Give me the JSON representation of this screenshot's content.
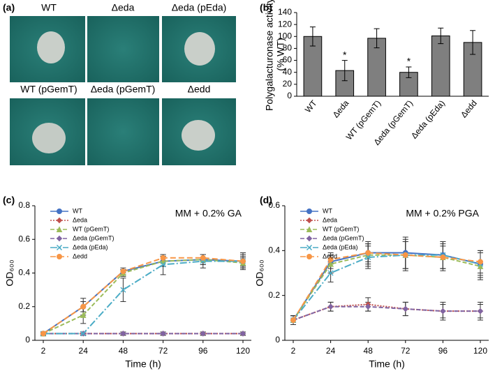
{
  "panels": {
    "a": {
      "label": "(a)",
      "plates": [
        "WT",
        "Δeda",
        "Δeda (pEda)",
        "WT (pGemT)",
        "Δeda (pGemT)",
        "Δedd"
      ]
    }
  },
  "chart_data": [
    {
      "type": "bar",
      "panel_label": "(b)",
      "ylabel": [
        "Polygalacturonase activity",
        "(% WT)"
      ],
      "categories": [
        "WT",
        "Δeda",
        "WT (pGemT)",
        "Δeda (pGemT)",
        "Δeda (pEda)",
        "Δedd"
      ],
      "values": [
        100,
        43,
        97,
        40,
        101,
        90
      ],
      "errors": [
        16,
        17,
        16,
        9,
        13,
        20
      ],
      "markers": [
        null,
        "*",
        null,
        "*",
        null,
        null
      ],
      "color": "#7f7f7f",
      "ylim": [
        0,
        140
      ],
      "yticks": [
        0,
        20,
        40,
        60,
        80,
        100,
        120,
        140
      ]
    },
    {
      "type": "line",
      "panel_label": "(c)",
      "annotation": "MM + 0.2% GA",
      "xlabel": "Time (h)",
      "ylabel": "OD₆₀₀",
      "categories": [
        "2",
        "24",
        "48",
        "72",
        "96",
        "120"
      ],
      "ylim": [
        0,
        0.8
      ],
      "yticks": [
        0,
        0.2,
        0.4,
        0.6,
        0.8
      ],
      "series": [
        {
          "name": "WT",
          "color": "#4472c4",
          "marker": "circle",
          "dash": "none",
          "values": [
            0.04,
            0.2,
            0.41,
            0.47,
            0.48,
            0.47
          ],
          "errors": [
            0.01,
            0.05,
            0.01,
            0.03,
            0.03,
            0.05
          ]
        },
        {
          "name": "Δeda",
          "color": "#c0504d",
          "marker": "diamond",
          "dash": "2,2",
          "values": [
            0.04,
            0.04,
            0.04,
            0.04,
            0.04,
            0.04
          ],
          "errors": [
            0.01,
            0.01,
            0.01,
            0.01,
            0.01,
            0.01
          ]
        },
        {
          "name": "WT (pGemT)",
          "color": "#9bbb59",
          "marker": "triangle",
          "dash": "6,3",
          "values": [
            0.04,
            0.15,
            0.4,
            0.47,
            0.48,
            0.46
          ],
          "errors": [
            0.01,
            0.05,
            0.02,
            0.03,
            0.03,
            0.03
          ]
        },
        {
          "name": "Δeda (pGemT)",
          "color": "#8064a2",
          "marker": "diamond",
          "dash": "6,3",
          "values": [
            0.04,
            0.04,
            0.04,
            0.04,
            0.04,
            0.04
          ],
          "errors": [
            0.01,
            0.01,
            0.01,
            0.01,
            0.01,
            0.01
          ]
        },
        {
          "name": "Δeda (pEda)",
          "color": "#4bacc6",
          "marker": "x",
          "dash": "10,3,2,3",
          "values": [
            0.04,
            0.04,
            0.3,
            0.45,
            0.47,
            0.47
          ],
          "errors": [
            0.01,
            0.01,
            0.07,
            0.06,
            0.04,
            0.04
          ]
        },
        {
          "name": "Δedd",
          "color": "#f79646",
          "marker": "circle",
          "dash": "8,4",
          "values": [
            0.04,
            0.2,
            0.41,
            0.49,
            0.49,
            0.47
          ],
          "errors": [
            0.01,
            0.03,
            0.02,
            0.02,
            0.02,
            0.03
          ]
        }
      ]
    },
    {
      "type": "line",
      "panel_label": "(d)",
      "annotation": "MM + 0.2% PGA",
      "xlabel": "Time (h)",
      "ylabel": "OD₆₀₀",
      "categories": [
        "2",
        "24",
        "48",
        "72",
        "96",
        "120"
      ],
      "ylim": [
        0,
        0.6
      ],
      "yticks": [
        0,
        0.2,
        0.4,
        0.6
      ],
      "series": [
        {
          "name": "WT",
          "color": "#4472c4",
          "marker": "circle",
          "dash": "none",
          "values": [
            0.09,
            0.35,
            0.39,
            0.39,
            0.38,
            0.34
          ],
          "errors": [
            0.02,
            0.03,
            0.05,
            0.07,
            0.06,
            0.06
          ]
        },
        {
          "name": "Δeda",
          "color": "#c0504d",
          "marker": "diamond",
          "dash": "2,2",
          "values": [
            0.09,
            0.15,
            0.16,
            0.14,
            0.13,
            0.13
          ],
          "errors": [
            0.02,
            0.02,
            0.03,
            0.03,
            0.04,
            0.04
          ]
        },
        {
          "name": "WT (pGemT)",
          "color": "#9bbb59",
          "marker": "triangle",
          "dash": "6,3",
          "values": [
            0.09,
            0.34,
            0.38,
            0.38,
            0.37,
            0.33
          ],
          "errors": [
            0.02,
            0.04,
            0.05,
            0.07,
            0.06,
            0.06
          ]
        },
        {
          "name": "Δeda (pGemT)",
          "color": "#8064a2",
          "marker": "diamond",
          "dash": "6,3",
          "values": [
            0.09,
            0.15,
            0.15,
            0.14,
            0.13,
            0.13
          ],
          "errors": [
            0.02,
            0.02,
            0.02,
            0.03,
            0.03,
            0.03
          ]
        },
        {
          "name": "Δeda (pEda)",
          "color": "#4bacc6",
          "marker": "x",
          "dash": "10,3,2,3",
          "values": [
            0.09,
            0.3,
            0.37,
            0.38,
            0.38,
            0.34
          ],
          "errors": [
            0.02,
            0.04,
            0.05,
            0.06,
            0.06,
            0.05
          ]
        },
        {
          "name": "Δedd",
          "color": "#f79646",
          "marker": "circle",
          "dash": "8,4",
          "values": [
            0.09,
            0.36,
            0.39,
            0.38,
            0.37,
            0.35
          ],
          "errors": [
            0.02,
            0.03,
            0.04,
            0.06,
            0.05,
            0.05
          ]
        }
      ]
    }
  ]
}
